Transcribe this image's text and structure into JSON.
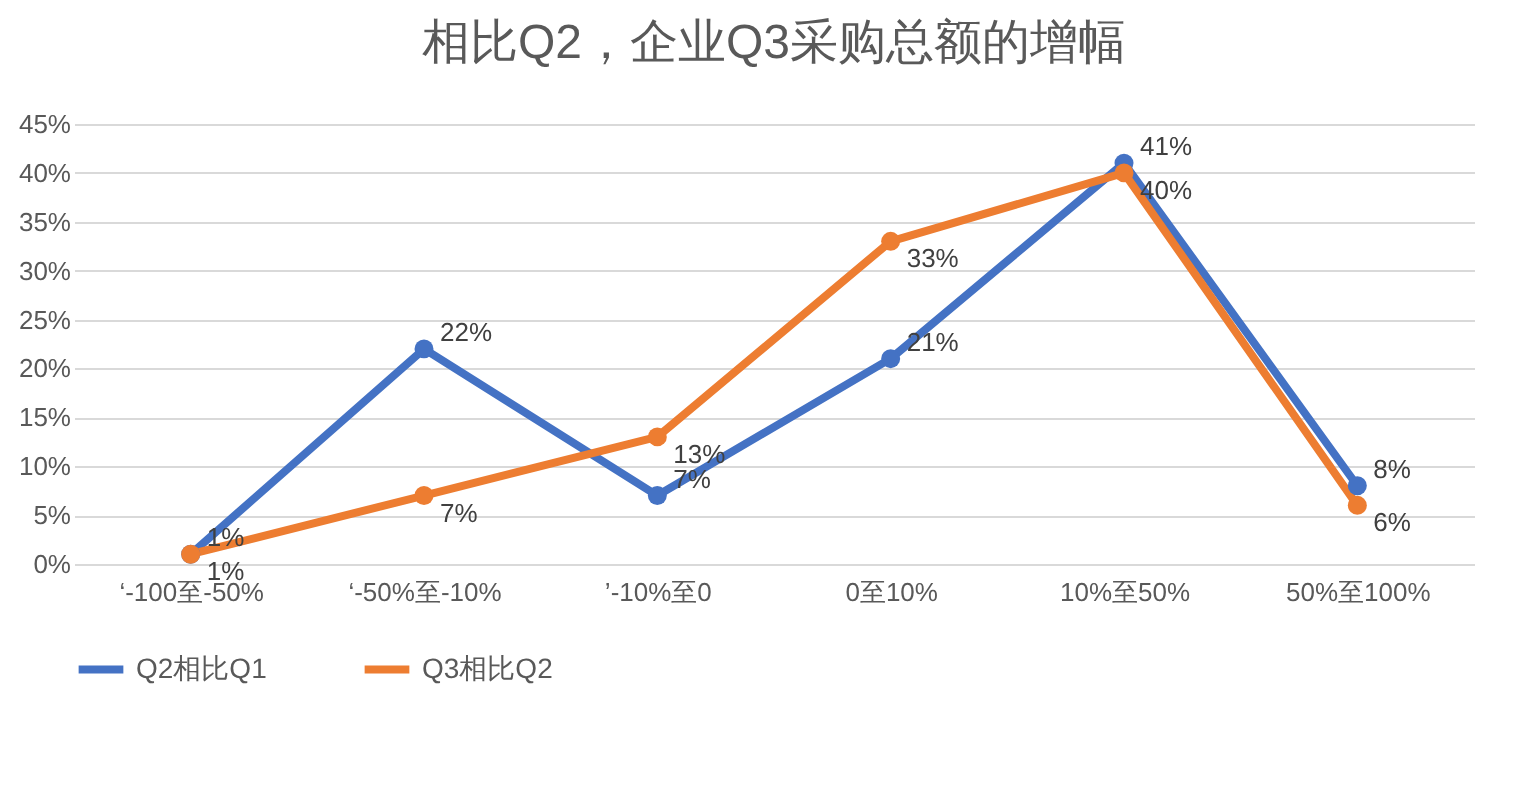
{
  "chart_data": {
    "type": "line",
    "title": "相比Q2，企业Q3采购总额的增幅",
    "categories": [
      "‘-100至-50%",
      "‘-50%至-10%",
      "’-10%至0",
      "0至10%",
      "10%至50%",
      "50%至100%"
    ],
    "series": [
      {
        "name": "Q2相比Q1",
        "color": "#4472c4",
        "values": [
          1,
          22,
          7,
          21,
          41,
          8
        ],
        "value_labels": [
          "1%",
          "22%",
          "7%",
          "21%",
          "41%",
          "8%"
        ]
      },
      {
        "name": "Q3相比Q2",
        "color": "#ed7d31",
        "values": [
          1,
          7,
          13,
          33,
          40,
          6
        ],
        "value_labels": [
          "1%",
          "7%",
          "13%",
          "33%",
          "40%",
          "6%"
        ]
      }
    ],
    "ylim": [
      0,
      45
    ],
    "yticks": [
      {
        "value": 0,
        "label": "0%"
      },
      {
        "value": 5,
        "label": "5%"
      },
      {
        "value": 10,
        "label": "10%"
      },
      {
        "value": 15,
        "label": "15%"
      },
      {
        "value": 20,
        "label": "20%"
      },
      {
        "value": 25,
        "label": "25%"
      },
      {
        "value": 30,
        "label": "30%"
      },
      {
        "value": 35,
        "label": "35%"
      },
      {
        "value": 40,
        "label": "40%"
      },
      {
        "value": 45,
        "label": "45%"
      }
    ],
    "grid": "y",
    "legend": "bottom",
    "marker": "circle",
    "line_style": "solid"
  }
}
